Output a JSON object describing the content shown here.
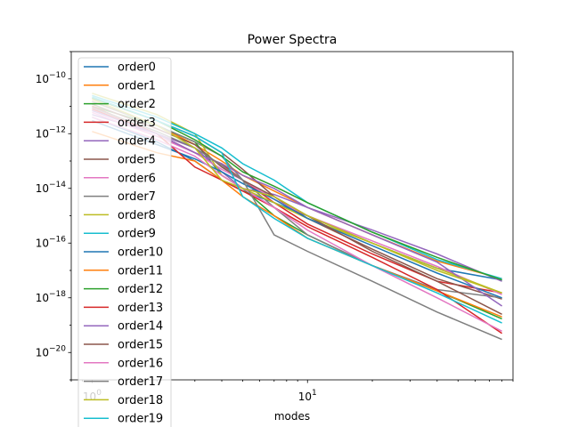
{
  "chart_data": {
    "type": "line",
    "title": "Power Spectra",
    "xlabel": "modes",
    "ylabel": "",
    "xscale": "log",
    "yscale": "log",
    "xlim": [
      0.8,
      90
    ],
    "ylim": [
      1e-21,
      1e-09
    ],
    "x_ticks": [
      {
        "value": 1,
        "label": "10^0"
      },
      {
        "value": 10,
        "label": "10^1"
      }
    ],
    "y_ticks": [
      {
        "value": 1e-10,
        "label": "10^-10"
      },
      {
        "value": 1e-12,
        "label": "10^-12"
      },
      {
        "value": 1e-14,
        "label": "10^-14"
      },
      {
        "value": 1e-16,
        "label": "10^-16"
      },
      {
        "value": 1e-18,
        "label": "10^-18"
      },
      {
        "value": 1e-20,
        "label": "10^-20"
      }
    ],
    "grid": false,
    "legend": "upper-left",
    "palette": [
      "#1f77b4",
      "#ff7f0e",
      "#2ca02c",
      "#d62728",
      "#9467bd",
      "#8c564b",
      "#e377c2",
      "#7f7f7f",
      "#bcbd22",
      "#17becf"
    ],
    "series": [
      {
        "name": "order0",
        "x": [
          1,
          2,
          3,
          4,
          5,
          7,
          10,
          20,
          40,
          80
        ],
        "y": [
          4e-12,
          5e-13,
          1e-13,
          2e-14,
          8e-15,
          3e-15,
          1e-15,
          1e-16,
          1.2e-17,
          4.5e-18
        ]
      },
      {
        "name": "order1",
        "x": [
          1,
          2,
          3,
          4,
          5,
          7,
          10,
          20,
          40,
          80
        ],
        "y": [
          1.5e-11,
          2e-12,
          4e-13,
          1e-13,
          3e-14,
          8e-15,
          2e-15,
          2e-16,
          2.2e-17,
          5e-18
        ]
      },
      {
        "name": "order2",
        "x": [
          1,
          2,
          3,
          4,
          5,
          7,
          10,
          20,
          40,
          80
        ],
        "y": [
          1e-11,
          2e-12,
          5e-13,
          3e-14,
          1e-14,
          1e-15,
          2e-16,
          1.5e-17,
          1.8e-18,
          1.7e-19
        ]
      },
      {
        "name": "order3",
        "x": [
          1,
          2,
          3,
          4,
          5,
          7,
          10,
          20,
          40,
          80
        ],
        "y": [
          8e-12,
          1e-12,
          2e-13,
          8e-14,
          2e-14,
          3e-15,
          5e-16,
          4e-17,
          4e-18,
          1.5e-18
        ]
      },
      {
        "name": "order4",
        "x": [
          1,
          2,
          3,
          4,
          5,
          7,
          10,
          20,
          40,
          80
        ],
        "y": [
          5e-12,
          1e-12,
          3e-13,
          4e-14,
          1e-14,
          6e-15,
          2e-15,
          3e-16,
          4e-17,
          4e-18
        ]
      },
      {
        "name": "order5",
        "x": [
          1,
          2,
          3,
          4,
          5,
          7,
          10,
          20,
          40,
          80
        ],
        "y": [
          2e-11,
          3e-12,
          8e-13,
          2e-13,
          5e-14,
          5e-15,
          8e-16,
          6e-17,
          5e-18,
          9e-19
        ]
      },
      {
        "name": "order6",
        "x": [
          1,
          2,
          3,
          4,
          5,
          7,
          10,
          20,
          40,
          80
        ],
        "y": [
          6e-12,
          8e-13,
          2e-13,
          5e-14,
          2e-14,
          4e-15,
          1e-15,
          1.2e-16,
          1.4e-17,
          1.3e-18
        ]
      },
      {
        "name": "order7",
        "x": [
          1,
          2,
          3,
          4,
          5,
          7,
          10,
          20,
          40,
          80
        ],
        "y": [
          1.5e-11,
          2e-12,
          5e-13,
          1.5e-13,
          2e-14,
          2e-15,
          2e-16,
          1.5e-17,
          2e-18,
          1e-18
        ]
      },
      {
        "name": "order8",
        "x": [
          1,
          2,
          3,
          4,
          5,
          7,
          10,
          20,
          40,
          80
        ],
        "y": [
          3e-11,
          5e-12,
          1e-12,
          3e-14,
          1e-14,
          3e-15,
          8e-16,
          1e-16,
          1.2e-17,
          1.5e-18
        ]
      },
      {
        "name": "order9",
        "x": [
          1,
          2,
          3,
          4,
          5,
          7,
          10,
          20,
          40,
          80
        ],
        "y": [
          2.5e-11,
          4e-12,
          1e-12,
          3e-13,
          8e-14,
          2e-14,
          3e-15,
          2.5e-16,
          2.5e-17,
          5e-18
        ]
      },
      {
        "name": "order10",
        "x": [
          1,
          2,
          3,
          4,
          5,
          7,
          10,
          20,
          40,
          80
        ],
        "y": [
          3e-12,
          4e-13,
          1.2e-13,
          4e-14,
          1.5e-14,
          4e-15,
          8e-16,
          8e-17,
          8e-18,
          1e-18
        ]
      },
      {
        "name": "order11",
        "x": [
          1,
          2,
          3,
          4,
          5,
          7,
          10,
          20,
          40,
          80
        ],
        "y": [
          1.2e-12,
          2e-13,
          1e-13,
          2e-14,
          5e-15,
          1e-15,
          1.5e-16,
          1.5e-17,
          1.8e-18,
          2e-19
        ]
      },
      {
        "name": "order12",
        "x": [
          1,
          2,
          3,
          4,
          5,
          7,
          10,
          20,
          40,
          80
        ],
        "y": [
          2e-11,
          3e-12,
          6e-13,
          1.5e-13,
          4e-14,
          1.2e-14,
          3e-15,
          2.5e-16,
          3e-17,
          4.5e-18
        ]
      },
      {
        "name": "order13",
        "x": [
          1,
          2,
          3,
          4,
          5,
          7,
          10,
          20,
          40,
          80
        ],
        "y": [
          1e-11,
          1e-12,
          6e-14,
          2e-14,
          8e-15,
          2e-15,
          4e-16,
          3e-17,
          2e-18,
          5e-20
        ]
      },
      {
        "name": "order14",
        "x": [
          1,
          2,
          3,
          4,
          5,
          7,
          10,
          20,
          40,
          80
        ],
        "y": [
          7e-12,
          1e-12,
          2e-13,
          8e-14,
          3e-14,
          1e-14,
          2e-15,
          2e-16,
          2e-17,
          5e-19
        ]
      },
      {
        "name": "order15",
        "x": [
          1,
          2,
          3,
          4,
          5,
          7,
          10,
          20,
          40,
          80
        ],
        "y": [
          1.2e-11,
          1.5e-12,
          4e-13,
          6e-14,
          2e-14,
          5e-15,
          1e-15,
          5e-17,
          4e-18,
          2.5e-19
        ]
      },
      {
        "name": "order16",
        "x": [
          1,
          2,
          3,
          4,
          5,
          7,
          10,
          20,
          40,
          80
        ],
        "y": [
          4e-12,
          6e-13,
          1.5e-13,
          3e-14,
          1e-14,
          2e-15,
          3e-16,
          1.5e-17,
          1e-18,
          6e-20
        ]
      },
      {
        "name": "order17",
        "x": [
          1,
          2,
          3,
          4,
          5,
          7,
          10,
          20,
          40,
          80
        ],
        "y": [
          9e-12,
          1.2e-12,
          3e-13,
          7e-14,
          2e-14,
          2e-16,
          5e-17,
          4e-18,
          3e-19,
          3e-20
        ]
      },
      {
        "name": "order18",
        "x": [
          1,
          2,
          3,
          4,
          5,
          7,
          10,
          20,
          40,
          80
        ],
        "y": [
          1.8e-11,
          2e-12,
          3e-13,
          2e-14,
          1e-14,
          5e-15,
          1e-15,
          1e-16,
          1e-17,
          1.5e-18
        ]
      },
      {
        "name": "order19",
        "x": [
          1,
          2,
          3,
          4,
          5,
          7,
          10,
          20,
          40,
          80
        ],
        "y": [
          2.2e-11,
          3e-12,
          8e-13,
          2e-13,
          5e-15,
          8e-16,
          1.5e-16,
          1.5e-17,
          1.5e-18,
          1.2e-19
        ]
      }
    ]
  }
}
